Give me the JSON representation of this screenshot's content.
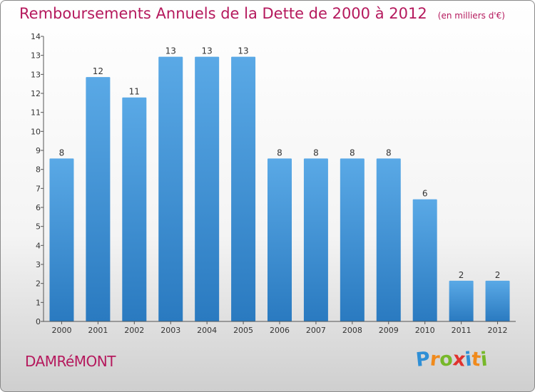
{
  "header": {
    "title": "Remboursements Annuels de la Dette de 2000 à 2012",
    "subtitle": "(en milliers d'€)"
  },
  "commune": "DAMRéMONT",
  "logo": {
    "letters": [
      "P",
      "r",
      "o",
      "x",
      "i",
      "t",
      "i"
    ],
    "colors": [
      "#2f8fd6",
      "#f08a1c",
      "#77b82a",
      "#e0322e",
      "#2f8fd6",
      "#f08a1c",
      "#77b82a"
    ]
  },
  "colors": {
    "bar_top": "#5aa9e6",
    "bar_bottom": "#2a7ac0",
    "title": "#b5195d"
  },
  "chart_data": {
    "type": "bar",
    "categories": [
      "2000",
      "2001",
      "2002",
      "2003",
      "2004",
      "2005",
      "2006",
      "2007",
      "2008",
      "2009",
      "2010",
      "2011",
      "2012"
    ],
    "values": [
      8,
      12,
      11,
      13,
      13,
      13,
      8,
      8,
      8,
      8,
      6,
      2,
      2
    ],
    "data_labels": [
      "8",
      "12",
      "11",
      "13",
      "13",
      "13",
      "8",
      "8",
      "8",
      "8",
      "6",
      "2",
      "2"
    ],
    "y_tick_labels": [
      "0",
      "1",
      "2",
      "3",
      "4",
      "5",
      "6",
      "7",
      "8",
      "9",
      "10",
      "11",
      "12",
      "13",
      "13",
      "14"
    ],
    "ylim": [
      0,
      14
    ],
    "grid": false
  }
}
